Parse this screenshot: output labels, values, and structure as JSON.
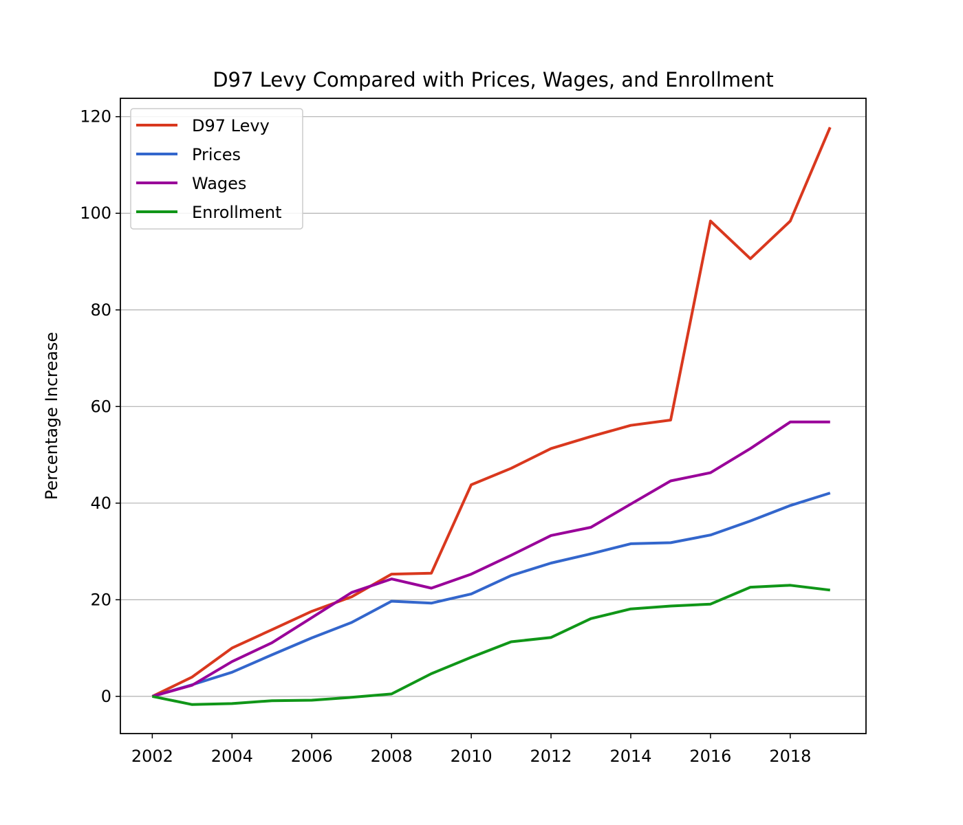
{
  "chart_data": {
    "type": "line",
    "title": "D97 Levy Compared with Prices, Wages, and Enrollment",
    "xlabel": "",
    "ylabel": "Percentage Increase",
    "x": [
      2002,
      2003,
      2004,
      2005,
      2006,
      2007,
      2008,
      2009,
      2010,
      2011,
      2012,
      2013,
      2014,
      2015,
      2016,
      2017,
      2018,
      2019
    ],
    "xlim": [
      2001.2,
      2019.9
    ],
    "ylim": [
      -7.7,
      123.8
    ],
    "xticks": [
      2002,
      2004,
      2006,
      2008,
      2010,
      2012,
      2014,
      2016,
      2018
    ],
    "yticks": [
      0,
      20,
      40,
      60,
      80,
      100,
      120
    ],
    "grid": "horizontal",
    "legend_position": "upper-left",
    "series": [
      {
        "name": "D97 Levy",
        "color": "#d9381e",
        "values": [
          0,
          4.0,
          10.0,
          13.8,
          17.6,
          20.6,
          25.3,
          25.5,
          43.8,
          47.2,
          51.3,
          53.8,
          56.1,
          57.2,
          98.4,
          90.6,
          98.4,
          117.8
        ]
      },
      {
        "name": "Prices",
        "color": "#3366cc",
        "values": [
          0,
          2.4,
          5.0,
          8.6,
          12.1,
          15.3,
          19.7,
          19.3,
          21.2,
          25.0,
          27.6,
          29.5,
          31.6,
          31.8,
          33.4,
          36.3,
          39.5,
          42.1
        ]
      },
      {
        "name": "Wages",
        "color": "#990099",
        "values": [
          0,
          2.3,
          7.2,
          11.1,
          16.3,
          21.5,
          24.3,
          22.4,
          25.3,
          29.2,
          33.3,
          35.0,
          39.8,
          44.6,
          46.3,
          51.3,
          56.8,
          56.8
        ]
      },
      {
        "name": "Enrollment",
        "color": "#109618",
        "values": [
          0,
          -1.7,
          -1.5,
          -0.9,
          -0.8,
          -0.2,
          0.5,
          4.7,
          8.1,
          11.3,
          12.2,
          16.1,
          18.1,
          18.7,
          19.1,
          22.6,
          23.0,
          22.0
        ]
      }
    ]
  }
}
